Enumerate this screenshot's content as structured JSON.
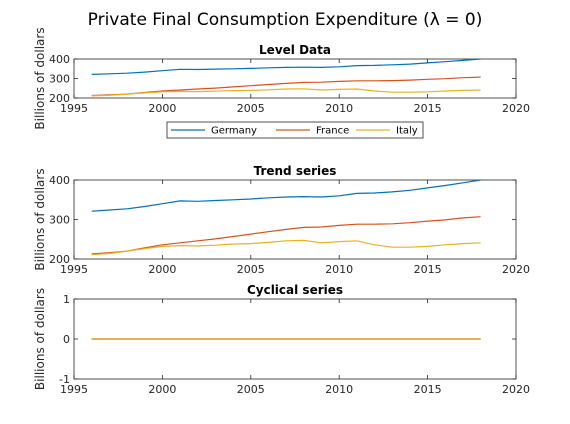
{
  "figure_title": "Private Final Consumption Expenditure (λ = 0)",
  "colors": {
    "Germany": "#0072BD",
    "France": "#D95319",
    "Italy": "#EDB120",
    "axis": "#262626"
  },
  "legend": {
    "placement": "below-top-panel",
    "entries": [
      "Germany",
      "France",
      "Italy"
    ]
  },
  "chart_data": [
    {
      "type": "line",
      "title": "Level Data",
      "ylabel": "Billions of dollars",
      "xlim": [
        1995,
        2020
      ],
      "ylim": [
        200,
        400
      ],
      "xticks": [
        1995,
        2000,
        2005,
        2010,
        2015,
        2020
      ],
      "yticks": [
        200,
        300,
        400
      ],
      "x": [
        1996,
        1997,
        1998,
        1999,
        2000,
        2001,
        2002,
        2003,
        2004,
        2005,
        2006,
        2007,
        2008,
        2009,
        2010,
        2011,
        2012,
        2013,
        2014,
        2015,
        2016,
        2017,
        2018
      ],
      "series": [
        {
          "name": "Germany",
          "values": [
            321,
            324,
            327,
            333,
            340,
            347,
            346,
            348,
            350,
            352,
            355,
            357,
            358,
            357,
            360,
            366,
            367,
            370,
            374,
            380,
            386,
            393,
            400
          ]
        },
        {
          "name": "France",
          "values": [
            213,
            216,
            220,
            228,
            236,
            241,
            246,
            251,
            257,
            263,
            269,
            275,
            280,
            281,
            285,
            288,
            288,
            289,
            292,
            296,
            299,
            304,
            307
          ]
        },
        {
          "name": "Italy",
          "values": [
            211,
            214,
            220,
            226,
            232,
            234,
            233,
            235,
            238,
            239,
            242,
            246,
            247,
            241,
            244,
            246,
            236,
            230,
            230,
            232,
            236,
            239,
            241
          ]
        }
      ]
    },
    {
      "type": "line",
      "title": "Trend series",
      "ylabel": "Billions of dollars",
      "xlim": [
        1995,
        2020
      ],
      "ylim": [
        200,
        400
      ],
      "xticks": [
        1995,
        2000,
        2005,
        2010,
        2015,
        2020
      ],
      "yticks": [
        200,
        300,
        400
      ],
      "x": [
        1996,
        1997,
        1998,
        1999,
        2000,
        2001,
        2002,
        2003,
        2004,
        2005,
        2006,
        2007,
        2008,
        2009,
        2010,
        2011,
        2012,
        2013,
        2014,
        2015,
        2016,
        2017,
        2018
      ],
      "series": [
        {
          "name": "Germany",
          "values": [
            321,
            324,
            327,
            333,
            340,
            347,
            346,
            348,
            350,
            352,
            355,
            357,
            358,
            357,
            360,
            366,
            367,
            370,
            374,
            380,
            386,
            393,
            400
          ]
        },
        {
          "name": "France",
          "values": [
            213,
            216,
            220,
            228,
            236,
            241,
            246,
            251,
            257,
            263,
            269,
            275,
            280,
            281,
            285,
            288,
            288,
            289,
            292,
            296,
            299,
            304,
            307
          ]
        },
        {
          "name": "Italy",
          "values": [
            211,
            214,
            220,
            226,
            232,
            234,
            233,
            235,
            238,
            239,
            242,
            246,
            247,
            241,
            244,
            246,
            236,
            230,
            230,
            232,
            236,
            239,
            241
          ]
        }
      ]
    },
    {
      "type": "line",
      "title": "Cyclical series",
      "ylabel": "Billions of dollars",
      "xlim": [
        1995,
        2020
      ],
      "ylim": [
        -1,
        1
      ],
      "xticks": [
        1995,
        2000,
        2005,
        2010,
        2015,
        2020
      ],
      "yticks": [
        -1,
        0,
        1
      ],
      "x": [
        1996,
        2018
      ],
      "series": [
        {
          "name": "Germany",
          "values": [
            0,
            0
          ]
        },
        {
          "name": "France",
          "values": [
            0,
            0
          ]
        },
        {
          "name": "Italy",
          "values": [
            0,
            0
          ]
        }
      ]
    }
  ]
}
